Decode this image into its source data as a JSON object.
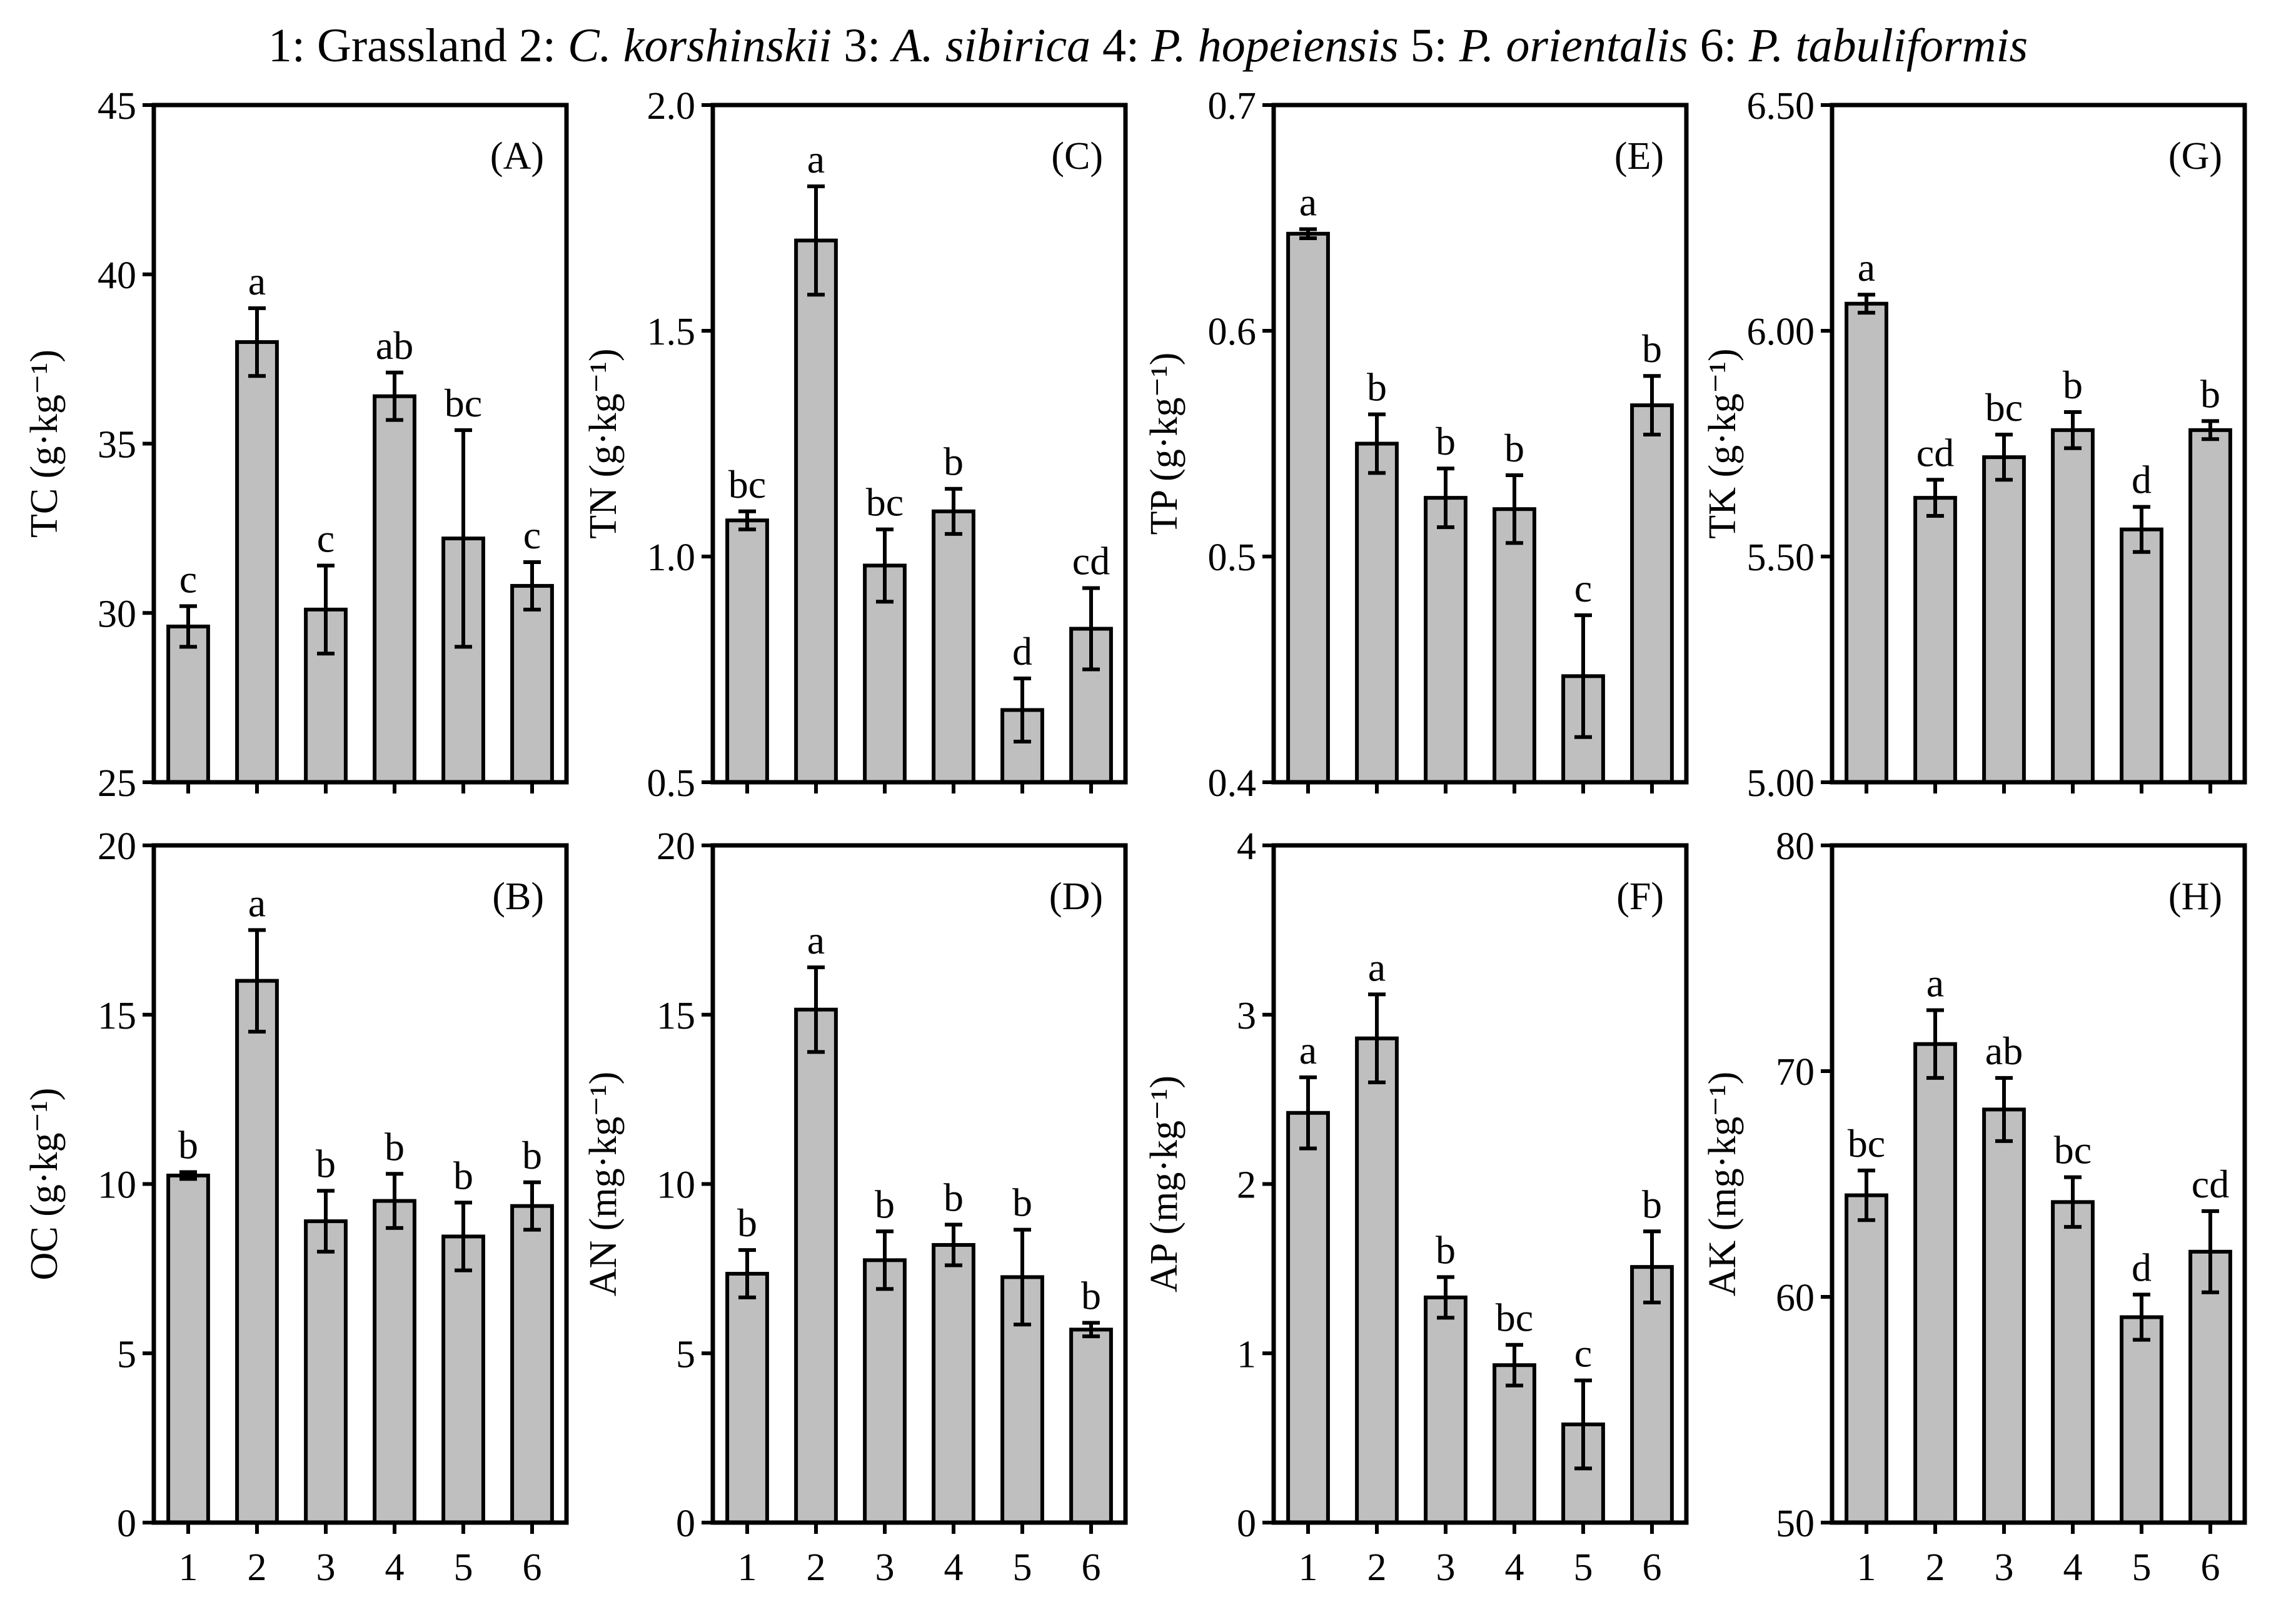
{
  "legend": {
    "prefix": "1: ",
    "items": [
      {
        "num": "1: ",
        "name": "Grassland",
        "italic": false
      },
      {
        "num": "2: ",
        "name": "C. korshinskii",
        "italic": true
      },
      {
        "num": "3: ",
        "name": "A. sibirica",
        "italic": true
      },
      {
        "num": "4: ",
        "name": "P. hopeiensis",
        "italic": true
      },
      {
        "num": "5: ",
        "name": "P. orientalis",
        "italic": true
      },
      {
        "num": "6: ",
        "name": "P. tabuliformis",
        "italic": true
      }
    ]
  },
  "chart_data": [
    {
      "type": "bar",
      "panel": "(A)",
      "ylabel": "TC (g·kg⁻¹)",
      "ylim": [
        25,
        45
      ],
      "yticks": [
        "25",
        "30",
        "35",
        "40",
        "45"
      ],
      "categories": [
        "1",
        "2",
        "3",
        "4",
        "5",
        "6"
      ],
      "values": [
        29.6,
        38.0,
        30.1,
        36.4,
        32.2,
        30.8
      ],
      "errors": [
        0.6,
        1.0,
        1.3,
        0.7,
        3.2,
        0.7
      ],
      "letters": [
        "c",
        "a",
        "c",
        "ab",
        "bc",
        "c"
      ]
    },
    {
      "type": "bar",
      "panel": "(C)",
      "ylabel": "TN (g·kg⁻¹)",
      "ylim": [
        0.5,
        2.0
      ],
      "yticks": [
        "0.5",
        "1.0",
        "1.5",
        "2.0"
      ],
      "categories": [
        "1",
        "2",
        "3",
        "4",
        "5",
        "6"
      ],
      "values": [
        1.08,
        1.7,
        0.98,
        1.1,
        0.66,
        0.84
      ],
      "errors": [
        0.02,
        0.12,
        0.08,
        0.05,
        0.07,
        0.09
      ],
      "letters": [
        "bc",
        "a",
        "bc",
        "b",
        "d",
        "cd"
      ]
    },
    {
      "type": "bar",
      "panel": "(E)",
      "ylabel": "TP (g·kg⁻¹)",
      "ylim": [
        0.4,
        0.7
      ],
      "yticks": [
        "0.4",
        "0.5",
        "0.6",
        "0.7"
      ],
      "categories": [
        "1",
        "2",
        "3",
        "4",
        "5",
        "6"
      ],
      "values": [
        0.643,
        0.55,
        0.526,
        0.521,
        0.447,
        0.567
      ],
      "errors": [
        0.002,
        0.013,
        0.013,
        0.015,
        0.027,
        0.013
      ],
      "letters": [
        "a",
        "b",
        "b",
        "b",
        "c",
        "b"
      ]
    },
    {
      "type": "bar",
      "panel": "(G)",
      "ylabel": "TK (g·kg⁻¹)",
      "ylim": [
        5.0,
        6.5
      ],
      "yticks": [
        "5.00",
        "5.50",
        "6.00",
        "6.50"
      ],
      "categories": [
        "1",
        "2",
        "3",
        "4",
        "5",
        "6"
      ],
      "values": [
        6.06,
        5.63,
        5.72,
        5.78,
        5.56,
        5.78
      ],
      "errors": [
        0.02,
        0.04,
        0.05,
        0.04,
        0.05,
        0.02
      ],
      "letters": [
        "a",
        "cd",
        "bc",
        "b",
        "d",
        "b"
      ]
    },
    {
      "type": "bar",
      "panel": "(B)",
      "ylabel": "OC (g·kg⁻¹)",
      "ylim": [
        0,
        20
      ],
      "yticks": [
        "0",
        "5",
        "10",
        "15",
        "20"
      ],
      "categories": [
        "1",
        "2",
        "3",
        "4",
        "5",
        "6"
      ],
      "values": [
        10.25,
        16.0,
        8.9,
        9.5,
        8.45,
        9.35
      ],
      "errors": [
        0.1,
        1.5,
        0.9,
        0.8,
        1.0,
        0.7
      ],
      "letters": [
        "b",
        "a",
        "b",
        "b",
        "b",
        "b"
      ]
    },
    {
      "type": "bar",
      "panel": "(D)",
      "ylabel": "AN (mg·kg⁻¹)",
      "ylim": [
        0,
        20
      ],
      "yticks": [
        "0",
        "5",
        "10",
        "15",
        "20"
      ],
      "categories": [
        "1",
        "2",
        "3",
        "4",
        "5",
        "6"
      ],
      "values": [
        7.35,
        15.15,
        7.75,
        8.2,
        7.25,
        5.7
      ],
      "errors": [
        0.7,
        1.25,
        0.85,
        0.6,
        1.4,
        0.2
      ],
      "letters": [
        "b",
        "a",
        "b",
        "b",
        "b",
        "b"
      ]
    },
    {
      "type": "bar",
      "panel": "(F)",
      "ylabel": "AP (mg·kg⁻¹)",
      "ylim": [
        0,
        4
      ],
      "yticks": [
        "0",
        "1",
        "2",
        "3",
        "4"
      ],
      "categories": [
        "1",
        "2",
        "3",
        "4",
        "5",
        "6"
      ],
      "values": [
        2.42,
        2.86,
        1.33,
        0.93,
        0.58,
        1.51
      ],
      "errors": [
        0.21,
        0.26,
        0.12,
        0.12,
        0.26,
        0.21
      ],
      "letters": [
        "a",
        "a",
        "b",
        "bc",
        "c",
        "b"
      ]
    },
    {
      "type": "bar",
      "panel": "(H)",
      "ylabel": "AK (mg·kg⁻¹)",
      "ylim": [
        50,
        80
      ],
      "yticks": [
        "50",
        "60",
        "70",
        "80"
      ],
      "categories": [
        "1",
        "2",
        "3",
        "4",
        "5",
        "6"
      ],
      "values": [
        64.5,
        71.2,
        68.3,
        64.2,
        59.1,
        62.0
      ],
      "errors": [
        1.1,
        1.5,
        1.4,
        1.1,
        1.0,
        1.8
      ],
      "letters": [
        "bc",
        "a",
        "ab",
        "bc",
        "d",
        "cd"
      ]
    }
  ]
}
